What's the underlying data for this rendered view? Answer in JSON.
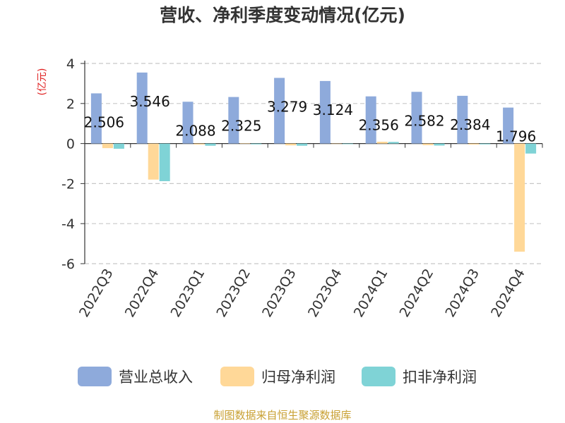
{
  "title": "营收、净利季度变动情况(亿元)",
  "source": "制图数据来自恒生聚源数据库",
  "chart_data": {
    "type": "bar",
    "unit_label": "(亿元)",
    "categories": [
      "2022Q3",
      "2022Q4",
      "2023Q1",
      "2023Q2",
      "2023Q3",
      "2023Q4",
      "2024Q1",
      "2024Q2",
      "2024Q3",
      "2024Q4"
    ],
    "ylim": [
      -6,
      4
    ],
    "yticks": [
      4,
      2,
      0,
      -2,
      -4,
      -6
    ],
    "grid": true,
    "legend_position": "bottom",
    "series": [
      {
        "name": "营业总收入",
        "color": "#8eaadb",
        "show_labels": true,
        "values": [
          2.506,
          3.546,
          2.088,
          2.325,
          3.279,
          3.124,
          2.356,
          2.582,
          2.384,
          1.796
        ]
      },
      {
        "name": "归母净利润",
        "color": "#ffd898",
        "show_labels": false,
        "values": [
          -0.23,
          -1.8,
          -0.05,
          0.02,
          -0.09,
          0.0,
          0.09,
          -0.08,
          -0.05,
          -5.4
        ]
      },
      {
        "name": "扣非净利润",
        "color": "#7fd3d6",
        "show_labels": false,
        "values": [
          -0.26,
          -1.88,
          -0.11,
          -0.04,
          -0.11,
          -0.03,
          0.08,
          -0.1,
          -0.04,
          -0.5
        ]
      }
    ]
  }
}
